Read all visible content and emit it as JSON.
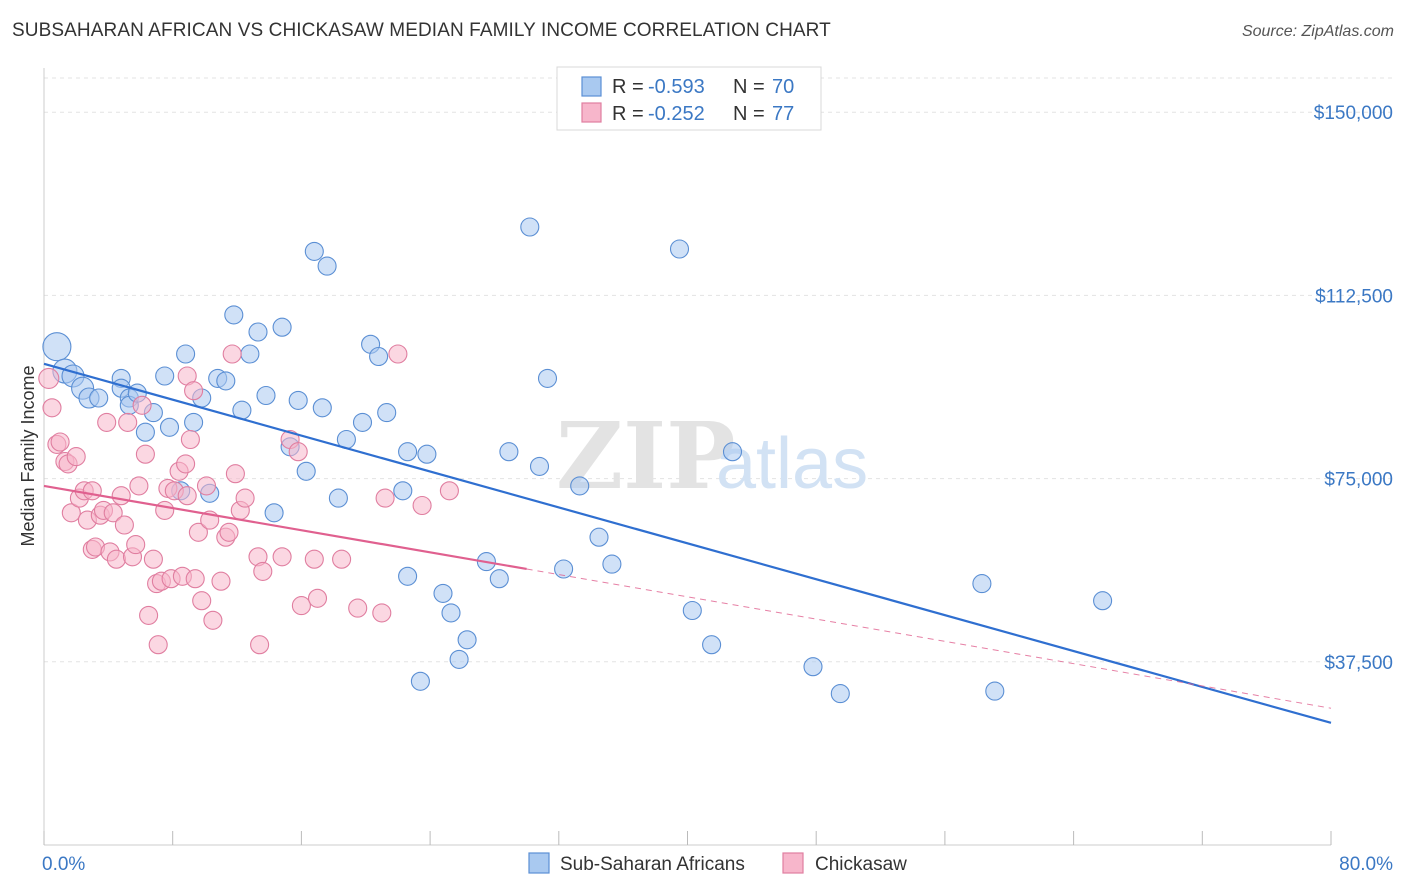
{
  "header": {
    "title": "SUBSAHARAN AFRICAN VS CHICKASAW MEDIAN FAMILY INCOME CORRELATION CHART",
    "source": "Source: ZipAtlas.com"
  },
  "watermark": {
    "zip": "ZIP",
    "atlas": "atlas"
  },
  "legend_top": [
    {
      "r_label": "R =",
      "r_value": "-0.593",
      "n_label": "N =",
      "n_value": "70",
      "color": "#a9c9f0",
      "stroke": "#5b8fd4"
    },
    {
      "r_label": "R =",
      "r_value": "-0.252",
      "n_label": "N =",
      "n_value": "77",
      "color": "#f7b6cb",
      "stroke": "#e07ea0"
    }
  ],
  "legend_bottom": [
    {
      "label": "Sub-Saharan Africans",
      "color": "#a9c9f0",
      "stroke": "#5b8fd4"
    },
    {
      "label": "Chickasaw",
      "color": "#f7b6cb",
      "stroke": "#e07ea0"
    }
  ],
  "colors": {
    "blue_fill": "#a9c9f0",
    "blue_stroke": "#5b8fd4",
    "blue_line": "#2f6fd0",
    "pink_fill": "#f7b6cb",
    "pink_stroke": "#e07ea0",
    "pink_line": "#e0608f",
    "grid": "#e3e3e3",
    "tick_text": "#3b78c4"
  },
  "chart_data": {
    "type": "scatter",
    "title": "SUBSAHARAN AFRICAN VS CHICKASAW MEDIAN FAMILY INCOME CORRELATION CHART",
    "xlabel": "",
    "ylabel": "Median Family Income",
    "xlim": [
      0,
      80
    ],
    "ylim": [
      0,
      157000
    ],
    "x_tick_labels": [
      "0.0%",
      "80.0%"
    ],
    "y_ticks": [
      37500,
      75000,
      112500,
      150000
    ],
    "y_tick_labels": [
      "$37,500",
      "$75,000",
      "$112,500",
      "$150,000"
    ],
    "grid": true,
    "legend_position": "top-center",
    "series": [
      {
        "name": "Sub-Saharan Africans",
        "r": -0.593,
        "n": 70,
        "trend": {
          "x": [
            0,
            80
          ],
          "y": [
            98500,
            25000
          ]
        },
        "points": [
          [
            0.8,
            102000,
            14
          ],
          [
            1.3,
            97000,
            12
          ],
          [
            1.8,
            96000,
            11
          ],
          [
            2.4,
            93500,
            11
          ],
          [
            2.8,
            91500,
            10
          ],
          [
            3.4,
            91500,
            9
          ],
          [
            4.8,
            95500,
            9
          ],
          [
            4.8,
            93500,
            9
          ],
          [
            5.3,
            91500,
            9
          ],
          [
            5.3,
            90000,
            9
          ],
          [
            5.8,
            92500,
            9
          ],
          [
            6.3,
            84500,
            9
          ],
          [
            6.8,
            88500,
            9
          ],
          [
            7.5,
            96000,
            9
          ],
          [
            7.8,
            85500,
            9
          ],
          [
            8.5,
            72500,
            9
          ],
          [
            8.8,
            100500,
            9
          ],
          [
            9.3,
            86500,
            9
          ],
          [
            9.8,
            91500,
            9
          ],
          [
            10.3,
            72000,
            9
          ],
          [
            10.8,
            95500,
            9
          ],
          [
            11.3,
            95000,
            9
          ],
          [
            11.8,
            108500,
            9
          ],
          [
            12.3,
            89000,
            9
          ],
          [
            12.8,
            100500,
            9
          ],
          [
            13.3,
            105000,
            9
          ],
          [
            13.8,
            92000,
            9
          ],
          [
            14.3,
            68000,
            9
          ],
          [
            14.8,
            106000,
            9
          ],
          [
            15.3,
            81500,
            9
          ],
          [
            15.8,
            91000,
            9
          ],
          [
            16.3,
            76500,
            9
          ],
          [
            16.8,
            121500,
            9
          ],
          [
            17.6,
            118500,
            9
          ],
          [
            17.3,
            89500,
            9
          ],
          [
            18.3,
            71000,
            9
          ],
          [
            18.8,
            83000,
            9
          ],
          [
            19.8,
            86500,
            9
          ],
          [
            20.3,
            102500,
            9
          ],
          [
            20.8,
            100000,
            9
          ],
          [
            21.3,
            88500,
            9
          ],
          [
            22.3,
            72500,
            9
          ],
          [
            22.6,
            55000,
            9
          ],
          [
            22.6,
            80500,
            9
          ],
          [
            23.4,
            33500,
            9
          ],
          [
            23.8,
            80000,
            9
          ],
          [
            24.8,
            51500,
            9
          ],
          [
            25.3,
            47500,
            9
          ],
          [
            25.8,
            38000,
            9
          ],
          [
            26.3,
            42000,
            9
          ],
          [
            27.5,
            58000,
            9
          ],
          [
            28.3,
            54500,
            9
          ],
          [
            28.9,
            80500,
            9
          ],
          [
            30.2,
            126500,
            9
          ],
          [
            30.8,
            77500,
            9
          ],
          [
            31.3,
            95500,
            9
          ],
          [
            32.3,
            56500,
            9
          ],
          [
            33.3,
            73500,
            9
          ],
          [
            34.5,
            63000,
            9
          ],
          [
            35.3,
            57500,
            9
          ],
          [
            39.5,
            122000,
            9
          ],
          [
            40.3,
            48000,
            9
          ],
          [
            41.5,
            41000,
            9
          ],
          [
            42.8,
            80500,
            9
          ],
          [
            47.8,
            36500,
            9
          ],
          [
            49.5,
            31000,
            9
          ],
          [
            58.3,
            53500,
            9
          ],
          [
            59.1,
            31500,
            9
          ],
          [
            65.8,
            50000,
            9
          ],
          [
            12.8,
            83000,
            0
          ]
        ]
      },
      {
        "name": "Chickasaw",
        "r": -0.252,
        "n": 77,
        "trend": {
          "x": [
            0,
            30
          ],
          "y": [
            73500,
            56500
          ]
        },
        "trend_dashed": {
          "x": [
            30,
            80
          ],
          "y": [
            56500,
            28000
          ]
        },
        "points": [
          [
            0.3,
            95500,
            10
          ],
          [
            0.5,
            89500,
            9
          ],
          [
            0.8,
            82000,
            9
          ],
          [
            1.0,
            82500,
            9
          ],
          [
            1.3,
            78500,
            9
          ],
          [
            1.5,
            78000,
            9
          ],
          [
            1.7,
            68000,
            9
          ],
          [
            2.0,
            79500,
            9
          ],
          [
            2.2,
            71000,
            9
          ],
          [
            2.5,
            72500,
            9
          ],
          [
            2.7,
            66500,
            9
          ],
          [
            3.0,
            72500,
            9
          ],
          [
            3.0,
            60500,
            9
          ],
          [
            3.2,
            61000,
            9
          ],
          [
            3.5,
            67500,
            9
          ],
          [
            3.7,
            68500,
            9
          ],
          [
            3.9,
            86500,
            9
          ],
          [
            4.1,
            60000,
            9
          ],
          [
            4.3,
            68000,
            9
          ],
          [
            4.5,
            58500,
            9
          ],
          [
            4.8,
            71500,
            9
          ],
          [
            5.0,
            65500,
            9
          ],
          [
            5.2,
            86500,
            9
          ],
          [
            5.5,
            59000,
            9
          ],
          [
            5.7,
            61500,
            9
          ],
          [
            5.9,
            73500,
            9
          ],
          [
            6.1,
            90000,
            9
          ],
          [
            6.3,
            80000,
            9
          ],
          [
            6.5,
            47000,
            9
          ],
          [
            6.8,
            58500,
            9
          ],
          [
            7.0,
            53500,
            9
          ],
          [
            7.1,
            41000,
            9
          ],
          [
            7.3,
            54000,
            9
          ],
          [
            7.5,
            68500,
            9
          ],
          [
            7.7,
            73000,
            9
          ],
          [
            7.9,
            54500,
            9
          ],
          [
            8.1,
            72500,
            9
          ],
          [
            8.4,
            76500,
            9
          ],
          [
            8.6,
            55000,
            9
          ],
          [
            8.8,
            78000,
            9
          ],
          [
            8.9,
            71500,
            9
          ],
          [
            8.9,
            96000,
            9
          ],
          [
            9.1,
            83000,
            9
          ],
          [
            9.3,
            93000,
            9
          ],
          [
            9.4,
            54500,
            9
          ],
          [
            9.6,
            64000,
            9
          ],
          [
            9.8,
            50000,
            9
          ],
          [
            10.1,
            73500,
            9
          ],
          [
            10.3,
            66500,
            9
          ],
          [
            10.5,
            46000,
            9
          ],
          [
            11.0,
            54000,
            9
          ],
          [
            11.3,
            63000,
            9
          ],
          [
            11.5,
            64000,
            9
          ],
          [
            11.7,
            100500,
            9
          ],
          [
            11.9,
            76000,
            9
          ],
          [
            12.2,
            68500,
            9
          ],
          [
            12.5,
            71000,
            9
          ],
          [
            13.3,
            59000,
            9
          ],
          [
            13.4,
            41000,
            9
          ],
          [
            13.6,
            56000,
            9
          ],
          [
            14.8,
            59000,
            9
          ],
          [
            15.3,
            83000,
            9
          ],
          [
            15.8,
            80500,
            9
          ],
          [
            16.0,
            49000,
            9
          ],
          [
            16.8,
            58500,
            9
          ],
          [
            17.0,
            50500,
            9
          ],
          [
            18.5,
            58500,
            9
          ],
          [
            19.5,
            48500,
            9
          ],
          [
            21.0,
            47500,
            9
          ],
          [
            21.2,
            71000,
            9
          ],
          [
            22.0,
            100500,
            9
          ],
          [
            23.5,
            69500,
            9
          ],
          [
            25.2,
            72500,
            9
          ],
          [
            14.0,
            89000,
            0
          ],
          [
            2.1,
            75000,
            0
          ],
          [
            6.0,
            66000,
            0
          ],
          [
            10.0,
            60000,
            0
          ]
        ]
      }
    ]
  }
}
